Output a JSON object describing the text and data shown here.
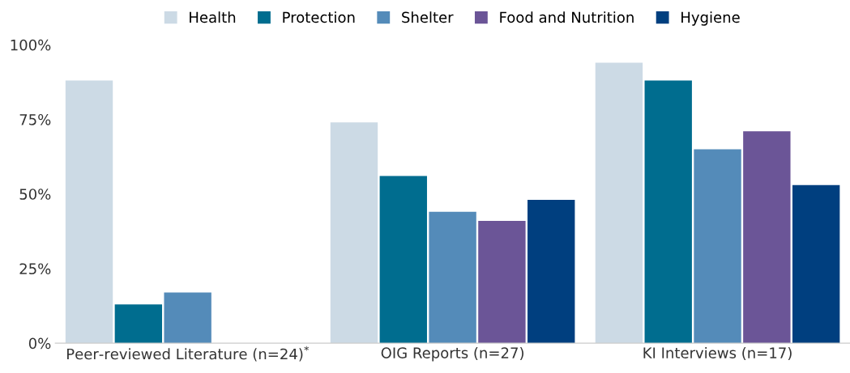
{
  "chart_data": {
    "type": "bar",
    "categories": [
      "Peer-reviewed Literature (n=24)$^{*}$",
      "OIG Reports (n=27)",
      "KI Interviews (n=17)"
    ],
    "series": [
      {
        "name": "Health",
        "color": "#ccdae5",
        "values": [
          88,
          74,
          94
        ]
      },
      {
        "name": "Protection",
        "color": "#006d8f",
        "values": [
          13,
          56,
          88
        ]
      },
      {
        "name": "Shelter",
        "color": "#548bb9",
        "values": [
          17,
          44,
          65
        ]
      },
      {
        "name": "Food and Nutrition",
        "color": "#6b5597",
        "values": [
          null,
          41,
          71
        ]
      },
      {
        "name": "Hygiene",
        "color": "#003f7f",
        "values": [
          null,
          48,
          53
        ]
      }
    ],
    "ylim": [
      0,
      100
    ],
    "yticks": [
      {
        "value": 0,
        "label": "0%"
      },
      {
        "value": 25,
        "label": "25%"
      },
      {
        "value": 50,
        "label": "50%"
      },
      {
        "value": 75,
        "label": "75%"
      },
      {
        "value": 100,
        "label": "100%"
      }
    ],
    "grid": false,
    "legend": "top"
  }
}
